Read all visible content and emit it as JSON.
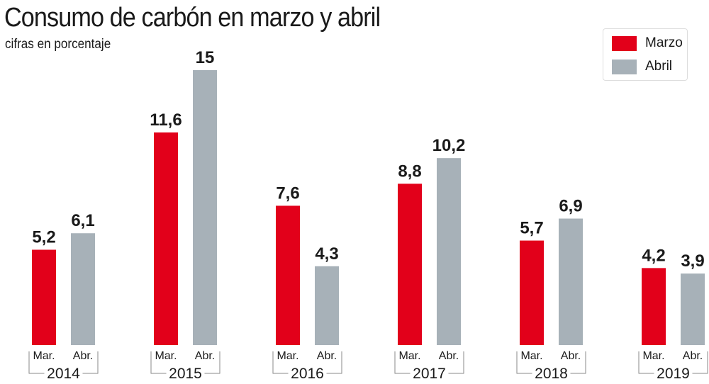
{
  "chart_data": {
    "type": "bar",
    "title": "Consumo de carbón en marzo y abril",
    "subtitle": "cifras en porcentaje",
    "categories": [
      "2014",
      "2015",
      "2016",
      "2017",
      "2018",
      "2019"
    ],
    "bar_labels": [
      "Mar.",
      "Abr."
    ],
    "series": [
      {
        "name": "Marzo",
        "color": "#e2001a",
        "values": [
          5.2,
          11.6,
          7.6,
          8.8,
          5.7,
          4.2
        ],
        "labels": [
          "5,2",
          "11,6",
          "7,6",
          "8,8",
          "5,7",
          "4,2"
        ]
      },
      {
        "name": "Abril",
        "color": "#a7b1b8",
        "values": [
          6.1,
          15,
          4.3,
          10.2,
          6.9,
          3.9
        ],
        "labels": [
          "6,1",
          "15",
          "4,3",
          "10,2",
          "6,9",
          "3,9"
        ]
      }
    ],
    "ylim": [
      0,
      15
    ],
    "grid": false,
    "legend_position": "top-right"
  }
}
